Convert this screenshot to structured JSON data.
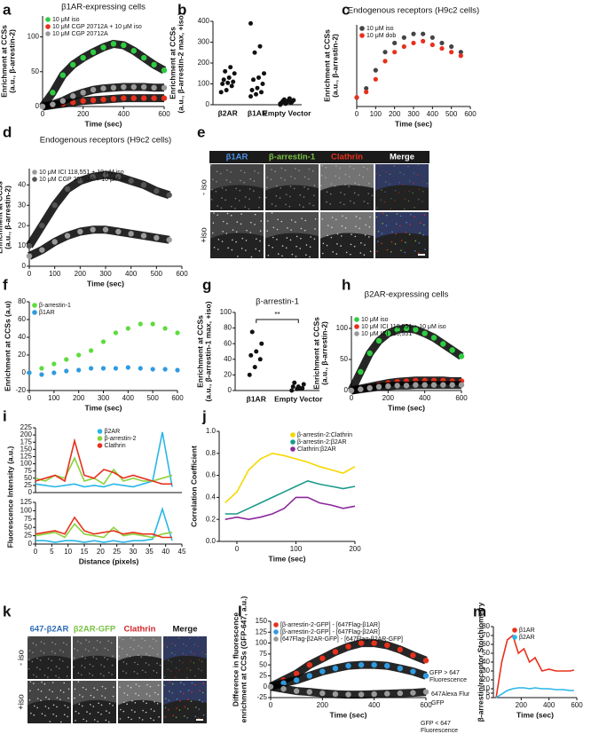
{
  "chart_data": [
    {
      "type": "line",
      "panel": "a",
      "title": "β1AR-expressing cells",
      "xlabel": "Time (sec)",
      "ylabel": [
        "Enrichment at CCSs",
        "(a.u., β-arrestin-2)"
      ],
      "xlim": [
        0,
        600
      ],
      "xticks": [
        0,
        200,
        400,
        600
      ],
      "ylim": [
        0,
        130
      ],
      "yticks": [
        0,
        50,
        100
      ],
      "legend": "upper-left",
      "band": true,
      "x": [
        0,
        50,
        100,
        150,
        200,
        250,
        300,
        350,
        400,
        450,
        500,
        550,
        600
      ],
      "series": [
        {
          "name": "10 μM iso",
          "color": "#2ecc40",
          "values": [
            0,
            20,
            45,
            60,
            70,
            78,
            85,
            90,
            88,
            80,
            70,
            60,
            52
          ]
        },
        {
          "name": "10 μM CGP 20712A + 10 μM iso",
          "color": "#e8301c",
          "values": [
            0,
            2,
            4,
            6,
            8,
            9,
            10,
            11,
            12,
            12,
            12,
            12,
            12
          ]
        },
        {
          "name": "10 μM CGP 20712A",
          "color": "#9a9a9a",
          "values": [
            0,
            3,
            8,
            15,
            20,
            24,
            26,
            27,
            28,
            28,
            28,
            27,
            27
          ]
        }
      ]
    },
    {
      "type": "strip",
      "panel": "b",
      "ylabel": [
        "Enrichment at CCSs",
        "(a.u., β-arrestin-2 max, +iso)"
      ],
      "ylim": [
        0,
        400
      ],
      "yticks": [
        0,
        100,
        200,
        300,
        400
      ],
      "color": "#111111",
      "categories": [
        "β2AR",
        "β1AR",
        "Empty Vector"
      ],
      "values": [
        [
          60,
          70,
          90,
          100,
          105,
          110,
          120,
          130,
          150,
          160,
          180
        ],
        [
          40,
          50,
          60,
          70,
          80,
          100,
          120,
          130,
          150,
          250,
          280,
          390
        ],
        [
          0,
          5,
          8,
          10,
          12,
          15,
          18,
          20,
          22,
          25,
          30,
          5
        ]
      ]
    },
    {
      "type": "line",
      "panel": "c",
      "title": "Endogenous receptors (H9c2 cells)",
      "xlabel": "Time (sec)",
      "ylabel": [
        "Enrichment at CCSs",
        "(a.u., β-arrestin-2)"
      ],
      "xlim": [
        0,
        600
      ],
      "xticks": [
        0,
        100,
        200,
        300,
        400,
        500,
        600
      ],
      "ylim": [
        0,
        45
      ],
      "yticks": [],
      "legend": "upper-left",
      "band": false,
      "x": [
        0,
        50,
        100,
        150,
        200,
        250,
        300,
        350,
        400,
        450,
        500,
        550
      ],
      "series": [
        {
          "name": "10 μM iso",
          "color": "#444444",
          "values": [
            5,
            10,
            20,
            30,
            35,
            38,
            40,
            40,
            38,
            35,
            33,
            30
          ]
        },
        {
          "name": "10 μM dob",
          "color": "#e8301c",
          "values": [
            5,
            8,
            15,
            25,
            30,
            33,
            35,
            36,
            34,
            32,
            30,
            28
          ]
        }
      ]
    },
    {
      "type": "line",
      "panel": "d",
      "title": "Endogenous receptors (H9c2 cells)",
      "xlabel": "Time (sec)",
      "ylabel": [
        "Enrichment at CCSs",
        "(a.u., β-arrestin-2)"
      ],
      "xlim": [
        0,
        600
      ],
      "xticks": [
        0,
        100,
        200,
        300,
        400,
        500,
        600
      ],
      "ylim": [
        0,
        48
      ],
      "yticks": [
        0,
        10,
        20,
        30,
        40
      ],
      "legend": "upper-left",
      "band": true,
      "x": [
        0,
        50,
        100,
        150,
        200,
        250,
        300,
        350,
        400,
        450,
        500,
        550
      ],
      "series": [
        {
          "name": "10 μM ICI 118,551 + 10 μM iso",
          "color": "#9a9a9a",
          "values": [
            5,
            8,
            12,
            15,
            17,
            18,
            18,
            17,
            16,
            15,
            14,
            13
          ]
        },
        {
          "name": "10 μM CGP 20712A + 10 μM iso",
          "color": "#555555",
          "values": [
            10,
            20,
            30,
            38,
            42,
            44,
            45,
            44,
            42,
            40,
            37,
            35
          ]
        }
      ]
    },
    {
      "type": "image-grid",
      "panel": "e",
      "columns": [
        "β1AR",
        "β-arrestin-1",
        "Clathrin",
        "Merge"
      ],
      "column_colors": [
        "#4a90e2",
        "#7ac143",
        "#e8301c",
        "#ffffff"
      ],
      "rows": [
        "- iso",
        "+iso"
      ]
    },
    {
      "type": "line",
      "panel": "f",
      "xlabel": "Time (sec)",
      "ylabel": "Enrichment at CCSs (a.u)",
      "xlim": [
        0,
        600
      ],
      "xticks": [
        0,
        100,
        200,
        300,
        400,
        500,
        600
      ],
      "ylim": [
        -20,
        80
      ],
      "yticks": [
        -20,
        0,
        20,
        40,
        60,
        80
      ],
      "legend": "upper-left",
      "band": false,
      "x": [
        0,
        50,
        100,
        150,
        200,
        250,
        300,
        350,
        400,
        450,
        500,
        550,
        600
      ],
      "series": [
        {
          "name": "β-arrestin-1",
          "color": "#5ddc3c",
          "values": [
            0,
            5,
            10,
            15,
            20,
            25,
            35,
            45,
            50,
            55,
            55,
            50,
            45
          ]
        },
        {
          "name": "β1AR",
          "color": "#2f9be0",
          "values": [
            0,
            -2,
            0,
            2,
            3,
            5,
            5,
            5,
            6,
            5,
            4,
            4,
            3
          ]
        }
      ]
    },
    {
      "type": "strip",
      "panel": "g",
      "title": "β-arrestin-1",
      "ylabel": [
        "Enrichment at CCSs",
        "(a.u., β-arrestin-1 max, +iso)"
      ],
      "ylim": [
        0,
        100
      ],
      "yticks": [
        0,
        20,
        40,
        60,
        80,
        100
      ],
      "color": "#111111",
      "annotation": "**",
      "categories": [
        "β1AR",
        "Empty Vector"
      ],
      "values": [
        [
          20,
          30,
          40,
          45,
          50,
          60,
          75
        ],
        [
          0,
          2,
          3,
          5,
          5,
          8,
          10,
          3
        ]
      ]
    },
    {
      "type": "line",
      "panel": "h",
      "title": "β2AR-expressing cells",
      "xlabel": "Time (sec)",
      "ylabel": [
        "Enrichment at CCSs",
        "(a.u., β-arrestin-2)"
      ],
      "xlim": [
        0,
        600
      ],
      "xticks": [
        0,
        200,
        400,
        600
      ],
      "ylim": [
        0,
        120
      ],
      "yticks": [
        0,
        50,
        100
      ],
      "legend": "upper-left",
      "band": true,
      "x": [
        0,
        50,
        100,
        150,
        200,
        250,
        300,
        350,
        400,
        450,
        500,
        550,
        600
      ],
      "series": [
        {
          "name": "10 μM iso",
          "color": "#2ecc40",
          "values": [
            0,
            30,
            60,
            80,
            92,
            98,
            100,
            98,
            92,
            85,
            75,
            65,
            55
          ]
        },
        {
          "name": "10 μM ICI 118,551 + 10 μM iso",
          "color": "#e8301c",
          "values": [
            0,
            3,
            6,
            9,
            12,
            14,
            15,
            16,
            16,
            16,
            16,
            15,
            15
          ]
        },
        {
          "name": "10 μM ICI 118,551",
          "color": "#9a9a9a",
          "values": [
            0,
            2,
            4,
            6,
            7,
            8,
            8,
            9,
            9,
            9,
            9,
            9,
            9
          ]
        }
      ]
    },
    {
      "type": "line",
      "panel": "i",
      "ylabel": "Fluorescence Intensity (a.u.)",
      "xlim": [
        0,
        45
      ],
      "xticks": [],
      "ylim": [
        0,
        225
      ],
      "yticks": [
        0,
        25,
        50,
        75,
        100,
        125,
        150,
        175,
        200,
        225
      ],
      "legend": "upper-center",
      "band": false,
      "connect": true,
      "x": [
        0,
        3,
        6,
        9,
        12,
        15,
        18,
        21,
        24,
        27,
        30,
        33,
        36,
        39,
        42
      ],
      "series": [
        {
          "name": "β2AR",
          "color": "#29b6e8",
          "values": [
            30,
            25,
            20,
            25,
            30,
            20,
            25,
            20,
            30,
            25,
            20,
            30,
            40,
            210,
            20
          ]
        },
        {
          "name": "β-arrestin-2",
          "color": "#8cd23c",
          "values": [
            50,
            40,
            60,
            50,
            120,
            40,
            50,
            30,
            80,
            40,
            50,
            40,
            40,
            50,
            60
          ]
        },
        {
          "name": "Clathrin",
          "color": "#e8301c",
          "values": [
            40,
            50,
            60,
            40,
            180,
            60,
            50,
            80,
            70,
            50,
            60,
            50,
            40,
            30,
            30
          ]
        }
      ]
    },
    {
      "type": "line",
      "xlabel": "Distance (pixels)",
      "xlim": [
        0,
        45
      ],
      "xticks": [
        0,
        5,
        10,
        15,
        20,
        25,
        30,
        35,
        40,
        45
      ],
      "ylim": [
        0,
        125
      ],
      "yticks": [
        0,
        25,
        50,
        75,
        100,
        125
      ],
      "band": false,
      "connect": true,
      "x": [
        0,
        3,
        6,
        9,
        12,
        15,
        18,
        21,
        24,
        27,
        30,
        33,
        36,
        39,
        42
      ],
      "series": [
        {
          "color": "#29b6e8",
          "values": [
            10,
            10,
            5,
            10,
            10,
            5,
            10,
            5,
            10,
            5,
            10,
            10,
            15,
            105,
            10
          ]
        },
        {
          "color": "#8cd23c",
          "values": [
            25,
            30,
            35,
            20,
            60,
            30,
            25,
            20,
            50,
            25,
            30,
            25,
            20,
            30,
            35
          ]
        },
        {
          "color": "#e8301c",
          "values": [
            30,
            35,
            40,
            30,
            80,
            40,
            30,
            35,
            40,
            30,
            35,
            30,
            30,
            20,
            20
          ]
        }
      ]
    },
    {
      "type": "line",
      "panel": "j",
      "xlabel": "Time (sec)",
      "ylabel": "Correlation Coefficient",
      "xlim": [
        -30,
        200
      ],
      "xticks": [
        0,
        100,
        200
      ],
      "ylim": [
        0,
        1.0
      ],
      "yticks": [
        {
          "value": 0,
          "label": "0.0"
        },
        0.2,
        0.4,
        0.6,
        0.8,
        {
          "value": 1,
          "label": "1.0"
        }
      ],
      "legend": "upper-right",
      "band": false,
      "connect": true,
      "x": [
        -20,
        0,
        20,
        40,
        60,
        80,
        100,
        120,
        140,
        160,
        180,
        200
      ],
      "series": [
        {
          "name": "β-arrestin-2:Clathrin",
          "color": "#f5d800",
          "values": [
            0.35,
            0.45,
            0.65,
            0.75,
            0.8,
            0.78,
            0.75,
            0.72,
            0.68,
            0.65,
            0.62,
            0.68
          ]
        },
        {
          "name": "β-arrestin-2:β2AR",
          "color": "#1a9a8a",
          "values": [
            0.25,
            0.25,
            0.3,
            0.35,
            0.4,
            0.45,
            0.5,
            0.55,
            0.52,
            0.5,
            0.48,
            0.5
          ]
        },
        {
          "name": "Clathrin:β2AR",
          "color": "#8b2a9a",
          "values": [
            0.2,
            0.22,
            0.2,
            0.22,
            0.25,
            0.3,
            0.4,
            0.4,
            0.35,
            0.33,
            0.3,
            0.32
          ]
        }
      ]
    },
    {
      "type": "image-grid",
      "panel": "k",
      "columns": [
        "647-β2AR",
        "β2AR-GFP",
        "Clathrin",
        "Merge"
      ],
      "column_colors": [
        "#2d6db5",
        "#7ac143",
        "#d2232a",
        "#111111"
      ],
      "rows": [
        "- iso",
        "+iso"
      ]
    },
    {
      "type": "line",
      "panel": "l",
      "xlabel": "Time (sec)",
      "ylabel": [
        "Difference in fluorescence",
        "enrichment at CCSs (GFP-647, a.u.)"
      ],
      "xlim": [
        0,
        600
      ],
      "xticks": [
        0,
        200,
        400,
        600
      ],
      "ylim": [
        -25,
        150
      ],
      "yticks": [
        -25,
        0,
        25,
        50,
        75,
        100,
        125,
        150
      ],
      "legend": "upper-left",
      "band": true,
      "annotations": [
        "647Alexa Flur",
        "GFP",
        "GFP > 647",
        "Fluorescence",
        "GFP < 647",
        "Fluorescence"
      ],
      "x": [
        0,
        50,
        100,
        150,
        200,
        250,
        300,
        350,
        400,
        450,
        500,
        550,
        600
      ],
      "series": [
        {
          "name": "[β-arrestin-2-GFP] - [647Flag-β1AR]",
          "color": "#e8301c",
          "values": [
            0,
            15,
            30,
            50,
            65,
            80,
            92,
            100,
            100,
            95,
            85,
            72,
            60
          ]
        },
        {
          "name": "[β-arrestin-2-GFP] - [647Flag-β2AR]",
          "color": "#2f9be0",
          "values": [
            0,
            8,
            15,
            25,
            35,
            42,
            48,
            50,
            50,
            48,
            42,
            35,
            25
          ]
        },
        {
          "name": "[647Flag-β2AR-GFP] - [647Flag-β2AR-GFP]",
          "color": "#9a9a9a",
          "values": [
            0,
            -5,
            -10,
            -12,
            -15,
            -17,
            -18,
            -18,
            -17,
            -16,
            -15,
            -14,
            -12
          ]
        }
      ]
    },
    {
      "type": "line",
      "panel": "m",
      "xlabel": "Time (sec)",
      "ylabel": "β-arrestin/receptor Stoichiometry",
      "xlim": [
        0,
        600
      ],
      "xticks": [
        200,
        400,
        600
      ],
      "ylim": [
        0,
        80
      ],
      "yticks": [
        0,
        5,
        10,
        20,
        30,
        40,
        50,
        60,
        70,
        80
      ],
      "legend": "upper-right",
      "band": false,
      "connect": true,
      "x": [
        20,
        60,
        100,
        140,
        180,
        220,
        260,
        300,
        350,
        400,
        450,
        500,
        550,
        580
      ],
      "series": [
        {
          "name": "β1AR",
          "color": "#e8301c",
          "values": [
            0,
            40,
            65,
            70,
            50,
            55,
            40,
            45,
            30,
            32,
            30,
            30,
            30,
            31
          ]
        },
        {
          "name": "β2AR",
          "color": "#29b6e8",
          "values": [
            0,
            4,
            8,
            10,
            11,
            11,
            10,
            11,
            10,
            10,
            9,
            9,
            8,
            8
          ]
        }
      ]
    }
  ]
}
